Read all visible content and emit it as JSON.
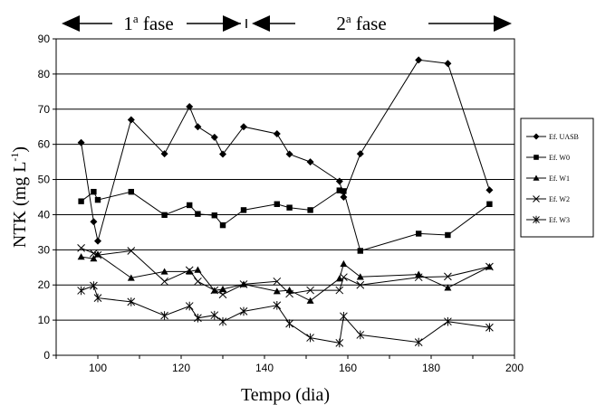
{
  "chart_data": {
    "type": "line",
    "xlabel": "Tempo (dia)",
    "ylabel": "NTK (mg L-1)",
    "ylabel_main": "NTK (mg L",
    "ylabel_sup": "-1",
    "ylabel_close": ")",
    "xlim": [
      90,
      200
    ],
    "ylim": [
      0,
      90
    ],
    "xticks": [
      100,
      120,
      140,
      160,
      180,
      200
    ],
    "yticks": [
      0,
      10,
      20,
      30,
      40,
      50,
      60,
      70,
      80,
      90
    ],
    "grid": "horizontal",
    "legend_position": "right",
    "phases": [
      {
        "label_main": "1",
        "label_sup": "a",
        "label_rest": " fase",
        "start": 90,
        "end": 136
      },
      {
        "label_main": "2",
        "label_sup": "a",
        "label_rest": " fase",
        "start": 136,
        "end": 200
      }
    ],
    "series": [
      {
        "name": "Ef. UASB",
        "marker": "diamond",
        "x": [
          96,
          99,
          100,
          108,
          116,
          122,
          124,
          128,
          130,
          135,
          143,
          146,
          151,
          158,
          159,
          163,
          177,
          184,
          194
        ],
        "y": [
          60.5,
          38,
          32.5,
          67,
          57.3,
          70.7,
          65,
          62,
          57.2,
          65,
          63,
          57.2,
          55,
          49.5,
          45,
          57.3,
          84,
          83,
          47
        ]
      },
      {
        "name": "Ef. W0",
        "marker": "square",
        "x": [
          96,
          99,
          100,
          108,
          116,
          122,
          124,
          128,
          130,
          135,
          143,
          146,
          151,
          158,
          159,
          163,
          177,
          184,
          194
        ],
        "y": [
          43.8,
          46.5,
          44.2,
          46.5,
          39.9,
          42.7,
          40.2,
          39.8,
          37,
          41.3,
          43,
          42,
          41.3,
          46.9,
          46.7,
          29.7,
          34.6,
          34.2,
          43
        ]
      },
      {
        "name": "Ef. W1",
        "marker": "triangle",
        "x": [
          96,
          99,
          100,
          108,
          116,
          122,
          124,
          128,
          130,
          135,
          143,
          146,
          151,
          158,
          159,
          163,
          177,
          184,
          194
        ],
        "y": [
          28,
          27.5,
          28.7,
          22,
          23.8,
          23.8,
          24.3,
          18.4,
          18.8,
          20.2,
          18.2,
          18.5,
          15.5,
          21.8,
          26,
          22.3,
          23,
          19.2,
          25.2
        ]
      },
      {
        "name": "Ef. W2",
        "marker": "x",
        "x": [
          96,
          99,
          100,
          108,
          116,
          122,
          124,
          128,
          130,
          135,
          143,
          146,
          151,
          158,
          159,
          163,
          177,
          184,
          194
        ],
        "y": [
          30.5,
          29,
          28.5,
          29.7,
          21,
          24.2,
          21,
          18.5,
          17.3,
          20.2,
          21,
          17.5,
          18.5,
          18.5,
          22.2,
          20,
          22.2,
          22.4,
          25.2
        ]
      },
      {
        "name": "Ef. W3",
        "marker": "star",
        "x": [
          96,
          99,
          100,
          108,
          116,
          122,
          124,
          128,
          130,
          135,
          143,
          146,
          151,
          158,
          159,
          163,
          177,
          184,
          194
        ],
        "y": [
          18.4,
          19.8,
          16.3,
          15.2,
          11.3,
          14,
          10.6,
          11.4,
          9.6,
          12.5,
          14.2,
          9,
          5,
          3.5,
          11.1,
          5.8,
          3.7,
          9.6,
          7.9
        ]
      }
    ]
  }
}
